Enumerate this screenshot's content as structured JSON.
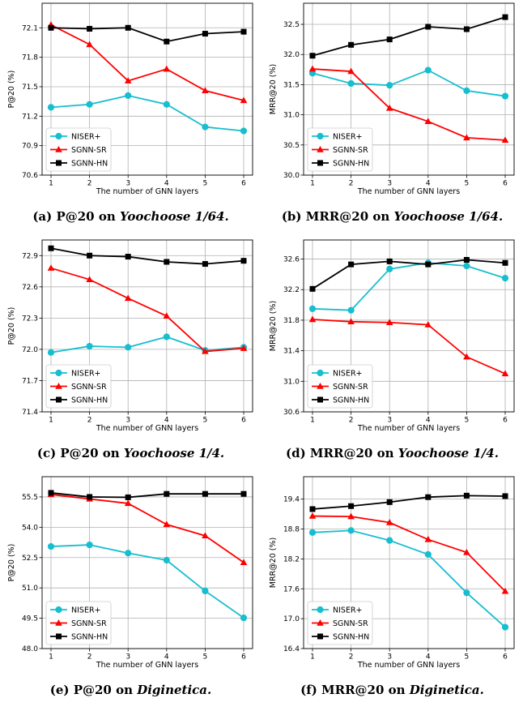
{
  "chart_data": [
    {
      "type": "line",
      "ylabel": "P@20 (%)",
      "xlabel": "The number of GNN layers",
      "caption_prefix": "(a) P@20 on ",
      "caption_dataset": "Yoochoose 1/64.",
      "x": [
        1,
        2,
        3,
        4,
        5,
        6
      ],
      "ylim": [
        70.6,
        72.35
      ],
      "yticks": [
        "70.6",
        "70.9",
        "71.2",
        "71.5",
        "71.8",
        "72.1"
      ],
      "grid": true,
      "legend": "lower-left",
      "series": [
        {
          "name": "NISER+",
          "color": "#17becf",
          "marker": "circle",
          "values": [
            71.29,
            71.32,
            71.41,
            71.32,
            71.09,
            71.05
          ]
        },
        {
          "name": "SGNN-SR",
          "color": "#ff0000",
          "marker": "triangle",
          "values": [
            72.13,
            71.93,
            71.56,
            71.68,
            71.46,
            71.36
          ]
        },
        {
          "name": "SGNN-HN",
          "color": "#000000",
          "marker": "square",
          "values": [
            72.1,
            72.09,
            72.1,
            71.96,
            72.04,
            72.06
          ]
        }
      ]
    },
    {
      "type": "line",
      "ylabel": "MRR@20 (%)",
      "xlabel": "The number of GNN layers",
      "caption_prefix": "(b) MRR@20 on ",
      "caption_dataset": "Yoochoose 1/64.",
      "x": [
        1,
        2,
        3,
        4,
        5,
        6
      ],
      "ylim": [
        30.0,
        32.85
      ],
      "yticks": [
        "30.0",
        "30.5",
        "31.0",
        "31.5",
        "32.0",
        "32.5"
      ],
      "grid": true,
      "legend": "lower-left",
      "series": [
        {
          "name": "NISER+",
          "color": "#17becf",
          "marker": "circle",
          "values": [
            31.69,
            31.52,
            31.49,
            31.74,
            31.4,
            31.31
          ]
        },
        {
          "name": "SGNN-SR",
          "color": "#ff0000",
          "marker": "triangle",
          "values": [
            31.76,
            31.72,
            31.11,
            30.89,
            30.62,
            30.58
          ]
        },
        {
          "name": "SGNN-HN",
          "color": "#000000",
          "marker": "square",
          "values": [
            31.98,
            32.16,
            32.25,
            32.46,
            32.42,
            32.62
          ]
        }
      ]
    },
    {
      "type": "line",
      "ylabel": "P@20 (%)",
      "xlabel": "The number of GNN layers",
      "caption_prefix": "(c) P@20 on ",
      "caption_dataset": "Yoochoose 1/4.",
      "x": [
        1,
        2,
        3,
        4,
        5,
        6
      ],
      "ylim": [
        71.4,
        73.05
      ],
      "yticks": [
        "71.4",
        "71.7",
        "72.0",
        "72.3",
        "72.6",
        "72.9"
      ],
      "grid": true,
      "legend": "lower-left",
      "series": [
        {
          "name": "NISER+",
          "color": "#17becf",
          "marker": "circle",
          "values": [
            71.97,
            72.03,
            72.02,
            72.12,
            71.99,
            72.02
          ]
        },
        {
          "name": "SGNN-SR",
          "color": "#ff0000",
          "marker": "triangle",
          "values": [
            72.78,
            72.67,
            72.49,
            72.32,
            71.98,
            72.01
          ]
        },
        {
          "name": "SGNN-HN",
          "color": "#000000",
          "marker": "square",
          "values": [
            72.97,
            72.9,
            72.89,
            72.84,
            72.82,
            72.85
          ]
        }
      ]
    },
    {
      "type": "line",
      "ylabel": "MRR@20 (%)",
      "xlabel": "The number of GNN layers",
      "caption_prefix": "(d) MRR@20 on ",
      "caption_dataset": "Yoochoose 1/4.",
      "x": [
        1,
        2,
        3,
        4,
        5,
        6
      ],
      "ylim": [
        30.6,
        32.85
      ],
      "yticks": [
        "30.6",
        "31.0",
        "31.4",
        "31.8",
        "32.2",
        "32.6"
      ],
      "grid": true,
      "legend": "lower-left",
      "series": [
        {
          "name": "NISER+",
          "color": "#17becf",
          "marker": "circle",
          "values": [
            31.95,
            31.93,
            32.47,
            32.55,
            32.51,
            32.35
          ]
        },
        {
          "name": "SGNN-SR",
          "color": "#ff0000",
          "marker": "triangle",
          "values": [
            31.81,
            31.78,
            31.77,
            31.74,
            31.32,
            31.1
          ]
        },
        {
          "name": "SGNN-HN",
          "color": "#000000",
          "marker": "square",
          "values": [
            32.21,
            32.53,
            32.57,
            32.53,
            32.59,
            32.55
          ]
        }
      ]
    },
    {
      "type": "line",
      "ylabel": "P@20 (%)",
      "xlabel": "The number of GNN layers",
      "caption_prefix": "(e) P@20 on ",
      "caption_dataset": "Diginetica.",
      "x": [
        1,
        2,
        3,
        4,
        5,
        6
      ],
      "ylim": [
        48.0,
        56.5
      ],
      "yticks": [
        "48.0",
        "49.5",
        "51.0",
        "52.5",
        "54.0",
        "55.5"
      ],
      "grid": true,
      "legend": "lower-left",
      "series": [
        {
          "name": "NISER+",
          "color": "#17becf",
          "marker": "circle",
          "values": [
            53.05,
            53.13,
            52.72,
            52.37,
            50.85,
            49.52
          ]
        },
        {
          "name": "SGNN-SR",
          "color": "#ff0000",
          "marker": "triangle",
          "values": [
            55.62,
            55.4,
            55.18,
            54.14,
            53.58,
            52.26
          ]
        },
        {
          "name": "SGNN-HN",
          "color": "#000000",
          "marker": "square",
          "values": [
            55.7,
            55.5,
            55.48,
            55.65,
            55.65,
            55.65
          ]
        }
      ]
    },
    {
      "type": "line",
      "ylabel": "MRR@20 (%)",
      "xlabel": "The number of GNN layers",
      "caption_prefix": "(f) MRR@20 on ",
      "caption_dataset": "Diginetica.",
      "x": [
        1,
        2,
        3,
        4,
        5,
        6
      ],
      "ylim": [
        16.4,
        19.85
      ],
      "yticks": [
        "16.4",
        "17.0",
        "17.6",
        "18.2",
        "18.8",
        "19.4"
      ],
      "grid": true,
      "legend": "lower-left",
      "series": [
        {
          "name": "NISER+",
          "color": "#17becf",
          "marker": "circle",
          "values": [
            18.73,
            18.77,
            18.57,
            18.29,
            17.52,
            16.83
          ]
        },
        {
          "name": "SGNN-SR",
          "color": "#ff0000",
          "marker": "triangle",
          "values": [
            19.06,
            19.05,
            18.93,
            18.59,
            18.33,
            17.55
          ]
        },
        {
          "name": "SGNN-HN",
          "color": "#000000",
          "marker": "square",
          "values": [
            19.2,
            19.26,
            19.34,
            19.44,
            19.47,
            19.46
          ]
        }
      ]
    }
  ]
}
